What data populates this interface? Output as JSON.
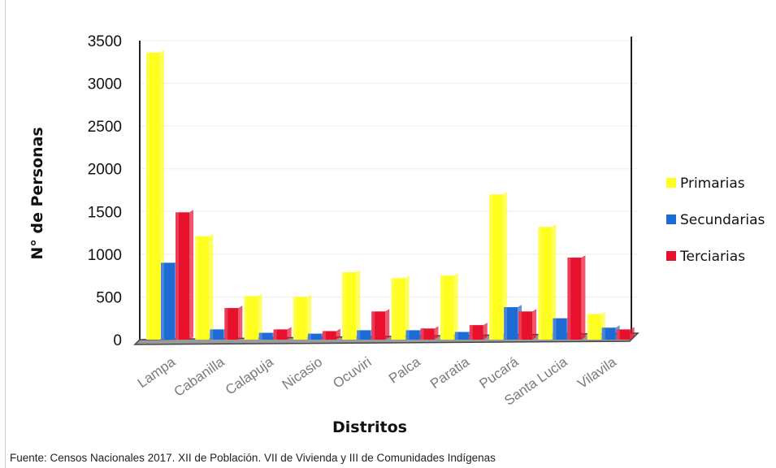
{
  "chart_data": {
    "type": "bar",
    "title": "",
    "xlabel": "Distritos",
    "ylabel": "N° de Personas",
    "ylim": [
      0,
      3500
    ],
    "yticks": [
      0,
      500,
      1000,
      1500,
      2000,
      2500,
      3000,
      3500
    ],
    "categories": [
      "Lampa",
      "Cabanilla",
      "Calapuja",
      "Nicasio",
      "Ocuviri",
      "Palca",
      "Paratia",
      "Pucará",
      "Santa Lucia",
      "Vilavila"
    ],
    "series": [
      {
        "name": "Primarias",
        "color": "#ffff1f",
        "values": [
          3360,
          1210,
          510,
          500,
          790,
          720,
          750,
          1700,
          1320,
          300
        ]
      },
      {
        "name": "Secundarias",
        "color": "#1f6bd6",
        "values": [
          900,
          120,
          80,
          70,
          110,
          110,
          90,
          380,
          250,
          140
        ]
      },
      {
        "name": "Terciarias",
        "color": "#e8112d",
        "values": [
          1490,
          370,
          120,
          100,
          330,
          130,
          170,
          330,
          960,
          120
        ]
      }
    ],
    "grid": true,
    "legend_position": "right"
  },
  "footer": {
    "source": "Fuente: Censos Nacionales 2017. XII de Población. VII de Vivienda y III de Comunidades Indígenas"
  }
}
